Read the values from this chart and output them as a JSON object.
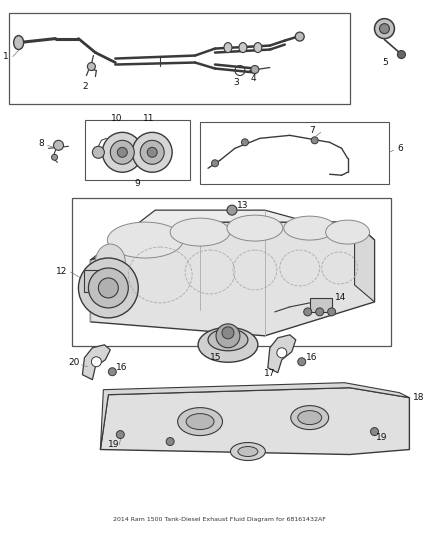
{
  "title": "2014 Ram 1500 Tank-Diesel Exhaust Fluid Diagram for 68161432AF",
  "bg_color": "#ffffff",
  "line_color": "#3a3a3a",
  "gray_fill": "#d0d0d0",
  "dark_gray": "#888888",
  "light_gray": "#e8e8e8"
}
